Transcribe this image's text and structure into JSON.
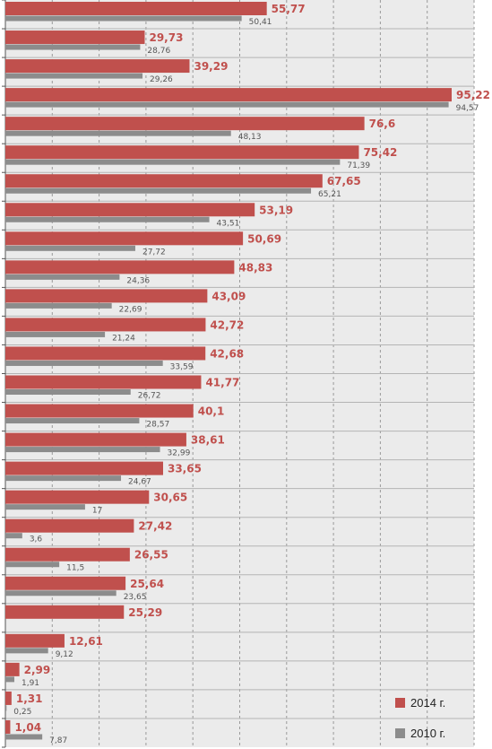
{
  "chart_data": {
    "type": "bar",
    "orientation": "horizontal",
    "grid": true,
    "legend_position": "bottom-right",
    "xlim": [
      0,
      100
    ],
    "series": [
      {
        "name": "2014 г.",
        "color": "#c0504d",
        "values": [
          55.77,
          29.73,
          39.29,
          95.22,
          76.6,
          75.42,
          67.65,
          53.19,
          50.69,
          48.83,
          43.09,
          42.72,
          42.68,
          41.77,
          40.1,
          38.61,
          33.65,
          30.65,
          27.42,
          26.55,
          25.64,
          25.29,
          12.61,
          2.99,
          1.31,
          1.04
        ],
        "labels": [
          "55,77",
          "29,73",
          "39,29",
          "95,22",
          "76,6",
          "75,42",
          "67,65",
          "53,19",
          "50,69",
          "48,83",
          "43,09",
          "42,72",
          "42,68",
          "41,77",
          "40,1",
          "38,61",
          "33,65",
          "30,65",
          "27,42",
          "26,55",
          "25,64",
          "25,29",
          "12,61",
          "2,99",
          "1,31",
          "1,04"
        ]
      },
      {
        "name": "2010 г.",
        "color": "#8c8c8c",
        "values": [
          50.41,
          28.76,
          29.26,
          94.57,
          48.13,
          71.39,
          65.21,
          43.51,
          27.72,
          24.36,
          22.69,
          21.24,
          33.59,
          26.72,
          28.57,
          32.99,
          24.67,
          17,
          3.6,
          11.5,
          23.65,
          null,
          9.12,
          1.91,
          0.25,
          7.87
        ],
        "labels": [
          "50,41",
          "28,76",
          "29,26",
          "94,57",
          "48,13",
          "71,39",
          "65,21",
          "43,51",
          "27,72",
          "24,36",
          "22,69",
          "21,24",
          "33,59",
          "26,72",
          "28,57",
          "32,99",
          "24,67",
          "17",
          "3,6",
          "11,5",
          "23,65",
          "",
          "9,12",
          "1,91",
          "0,25",
          "7,87"
        ]
      }
    ]
  },
  "legend": {
    "items": [
      {
        "label": "2014 г.",
        "color": "#c0504d"
      },
      {
        "label": "2010 г.",
        "color": "#8c8c8c"
      }
    ]
  }
}
